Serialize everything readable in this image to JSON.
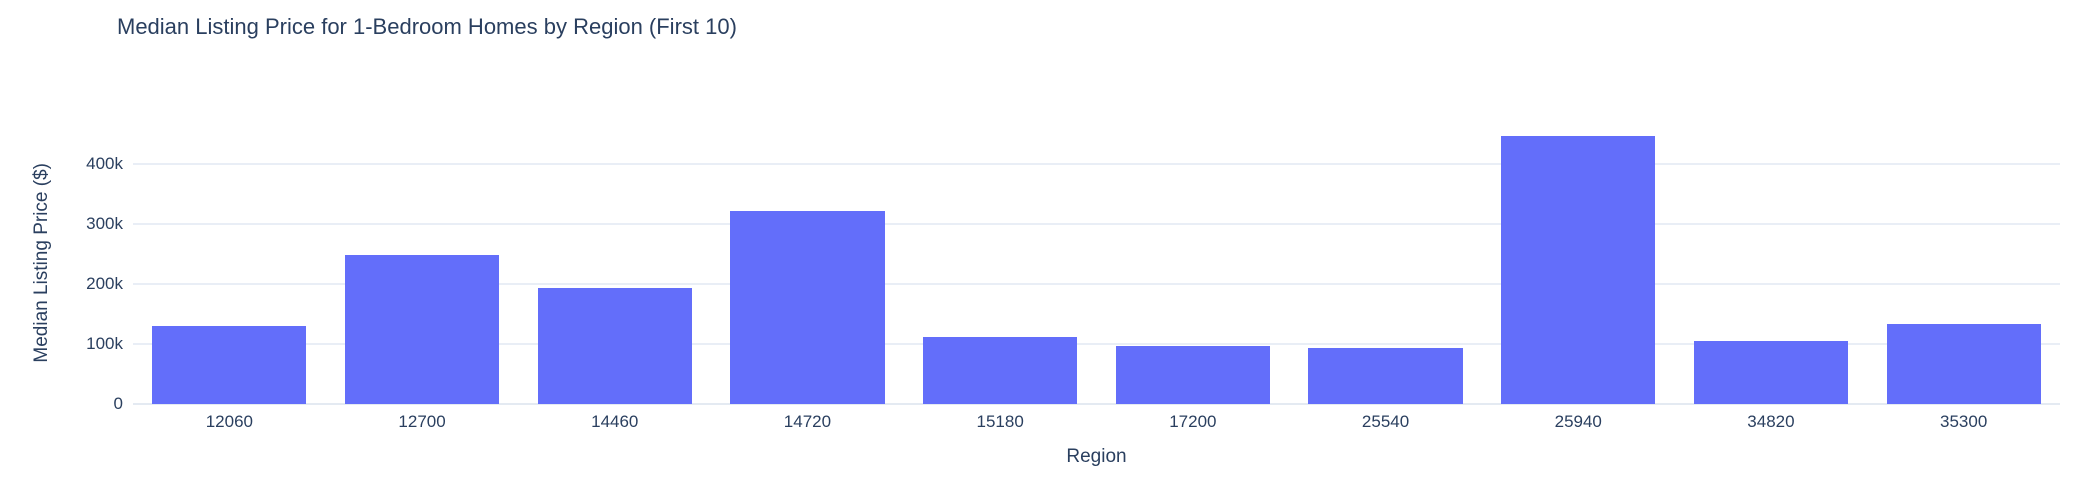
{
  "chart_data": {
    "type": "bar",
    "title": "Median Listing Price for 1-Bedroom Homes by Region (First 10)",
    "xlabel": "Region",
    "ylabel": "Median Listing Price ($)",
    "categories": [
      "12060",
      "12700",
      "14460",
      "14720",
      "15180",
      "17200",
      "25540",
      "25940",
      "34820",
      "35300"
    ],
    "values": [
      130000,
      249000,
      193000,
      322000,
      112000,
      97000,
      93000,
      447000,
      105000,
      133000
    ],
    "yticks": [
      {
        "value": 0,
        "label": "0"
      },
      {
        "value": 100000,
        "label": "100k"
      },
      {
        "value": 200000,
        "label": "200k"
      },
      {
        "value": 300000,
        "label": "300k"
      },
      {
        "value": 400000,
        "label": "400k"
      }
    ],
    "ylim": [
      0,
      472000
    ],
    "grid_on": true,
    "legend": null,
    "colors": {
      "bar": "#636EFA",
      "text": "#2A3F5F",
      "gridline": "#E9EEF6",
      "background": "#FFFFFF"
    }
  }
}
